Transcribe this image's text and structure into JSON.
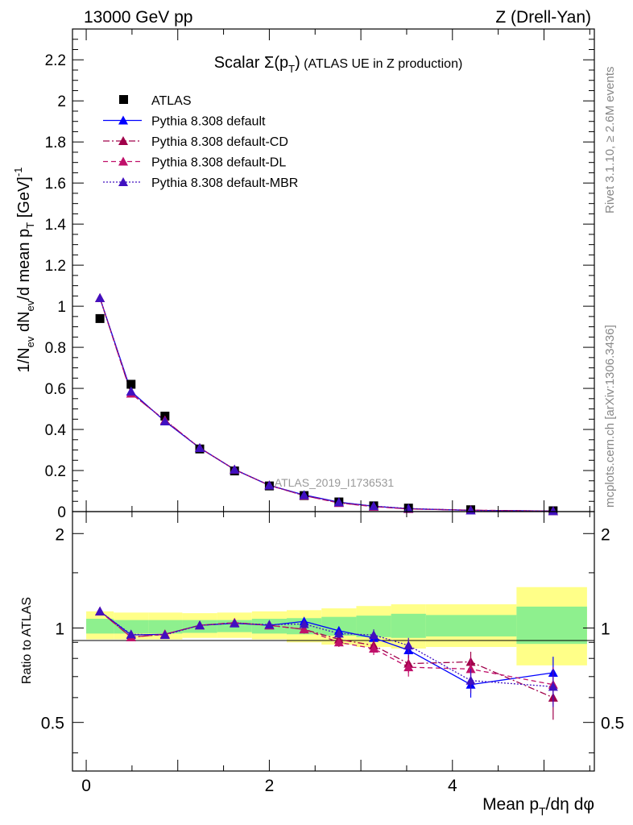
{
  "header": {
    "left": "13000 GeV pp",
    "right": "Z (Drell-Yan)"
  },
  "side_labels": {
    "rivet": "Rivet 3.1.10, ≥ 2.6M events",
    "mcplots": "mcplots.cern.ch [arXiv:1306.3436]"
  },
  "chart_data": [
    {
      "type": "line",
      "title": "Scalar Σ(pT) (ATLAS UE in Z production)",
      "ylabel": "1/Nev dNev/d mean pT [GeV]^-1",
      "xlabel": "Mean pT/dη dφ",
      "watermark": "ATLAS_2019_I1736531",
      "xlim": [
        -0.15,
        5.55
      ],
      "ylim": [
        0,
        2.35
      ],
      "yticks": [
        0,
        0.2,
        0.4,
        0.6,
        0.8,
        1,
        1.2,
        1.4,
        1.6,
        1.8,
        2,
        2.2
      ],
      "ytick_labels": [
        "0",
        "0.2",
        "0.4",
        "0.6",
        "0.8",
        "1",
        "1.2",
        "1.4",
        "1.6",
        "1.8",
        "2",
        "2.2"
      ],
      "legend_position": "top-left",
      "x": [
        0.15,
        0.49,
        0.86,
        1.24,
        1.62,
        2.0,
        2.38,
        2.76,
        3.14,
        3.52,
        4.2,
        5.1
      ],
      "series": [
        {
          "name": "ATLAS",
          "marker": "square",
          "color": "#000000",
          "dash": "none",
          "values": [
            0.94,
            0.62,
            0.465,
            0.305,
            0.198,
            0.125,
            0.078,
            0.047,
            0.028,
            0.017,
            0.009,
            0.004
          ]
        },
        {
          "name": "Pythia 8.308 default",
          "marker": "triangle",
          "color": "#0000ff",
          "dash": "solid",
          "values": [
            1.04,
            0.585,
            0.44,
            0.31,
            0.205,
            0.128,
            0.081,
            0.046,
            0.026,
            0.014,
            0.006,
            0.003
          ]
        },
        {
          "name": "Pythia 8.308 default-CD",
          "marker": "triangle",
          "color": "#a0004a",
          "dash": "8,3,2,3",
          "values": [
            1.04,
            0.575,
            0.445,
            0.31,
            0.205,
            0.128,
            0.078,
            0.043,
            0.025,
            0.013,
            0.007,
            0.0025
          ]
        },
        {
          "name": "Pythia 8.308 default-DL",
          "marker": "triangle",
          "color": "#c0106a",
          "dash": "6,4",
          "values": [
            1.04,
            0.575,
            0.445,
            0.31,
            0.205,
            0.128,
            0.078,
            0.042,
            0.024,
            0.013,
            0.0068,
            0.0024
          ]
        },
        {
          "name": "Pythia 8.308 default-MBR",
          "marker": "triangle",
          "color": "#4010c0",
          "dash": "2,2",
          "values": [
            1.04,
            0.585,
            0.44,
            0.31,
            0.205,
            0.128,
            0.08,
            0.045,
            0.027,
            0.015,
            0.006,
            0.0026
          ]
        }
      ]
    },
    {
      "type": "line",
      "ylabel": "Ratio to ATLAS",
      "xlabel": "Mean pT/dη dφ",
      "xlim": [
        -0.15,
        5.55
      ],
      "ylim": [
        0.35,
        2.35
      ],
      "yticks": [
        0.5,
        1,
        2
      ],
      "ytick_labels": [
        "0.5",
        "1",
        "2"
      ],
      "xticks": [
        0,
        2,
        4
      ],
      "xtick_labels": [
        "0",
        "2",
        "4"
      ],
      "x": [
        0.15,
        0.49,
        0.86,
        1.24,
        1.62,
        2.0,
        2.38,
        2.76,
        3.14,
        3.52,
        4.2,
        5.1
      ],
      "bands": {
        "bin_edges": [
          0,
          0.3,
          0.68,
          1.05,
          1.43,
          1.81,
          2.19,
          2.57,
          2.95,
          3.33,
          3.71,
          4.7,
          5.47
        ],
        "green_lo": [
          0.96,
          0.96,
          0.96,
          0.965,
          0.97,
          0.96,
          0.955,
          0.945,
          0.935,
          0.93,
          0.94,
          0.89
        ],
        "green_hi": [
          1.07,
          1.06,
          1.06,
          1.06,
          1.06,
          1.07,
          1.075,
          1.085,
          1.095,
          1.11,
          1.1,
          1.17
        ],
        "yellow_lo": [
          0.92,
          0.92,
          0.92,
          0.93,
          0.93,
          0.92,
          0.9,
          0.885,
          0.87,
          0.86,
          0.87,
          0.76
        ],
        "yellow_hi": [
          1.13,
          1.12,
          1.12,
          1.115,
          1.12,
          1.13,
          1.14,
          1.155,
          1.175,
          1.19,
          1.19,
          1.35
        ]
      },
      "series": [
        {
          "name": "Pythia 8.308 default",
          "color": "#0000ff",
          "dash": "solid",
          "values": [
            1.13,
            0.95,
            0.955,
            1.02,
            1.035,
            1.02,
            1.05,
            0.98,
            0.93,
            0.85,
            0.66,
            0.72
          ],
          "errors": [
            0.01,
            0.01,
            0.01,
            0.01,
            0.015,
            0.02,
            0.03,
            0.03,
            0.04,
            0.05,
            0.06,
            0.09
          ]
        },
        {
          "name": "Pythia 8.308 default-CD",
          "color": "#a0004a",
          "dash": "8,3,2,3",
          "values": [
            1.13,
            0.935,
            0.955,
            1.02,
            1.04,
            1.02,
            0.99,
            0.92,
            0.88,
            0.77,
            0.78,
            0.6
          ],
          "errors": [
            0.01,
            0.01,
            0.01,
            0.01,
            0.015,
            0.02,
            0.03,
            0.03,
            0.04,
            0.05,
            0.06,
            0.09
          ]
        },
        {
          "name": "Pythia 8.308 default-DL",
          "color": "#c0106a",
          "dash": "6,4",
          "values": [
            1.13,
            0.935,
            0.955,
            1.02,
            1.04,
            1.02,
            0.99,
            0.9,
            0.86,
            0.75,
            0.74,
            0.66
          ],
          "errors": [
            0.01,
            0.01,
            0.01,
            0.01,
            0.015,
            0.02,
            0.03,
            0.03,
            0.04,
            0.05,
            0.06,
            0.09
          ]
        },
        {
          "name": "Pythia 8.308 default-MBR",
          "color": "#4010c0",
          "dash": "2,2",
          "values": [
            1.13,
            0.955,
            0.95,
            1.02,
            1.035,
            1.025,
            1.03,
            0.96,
            0.95,
            0.88,
            0.68,
            0.65
          ],
          "errors": [
            0.01,
            0.01,
            0.01,
            0.01,
            0.015,
            0.02,
            0.03,
            0.03,
            0.04,
            0.05,
            0.06,
            0.09
          ]
        }
      ]
    }
  ]
}
